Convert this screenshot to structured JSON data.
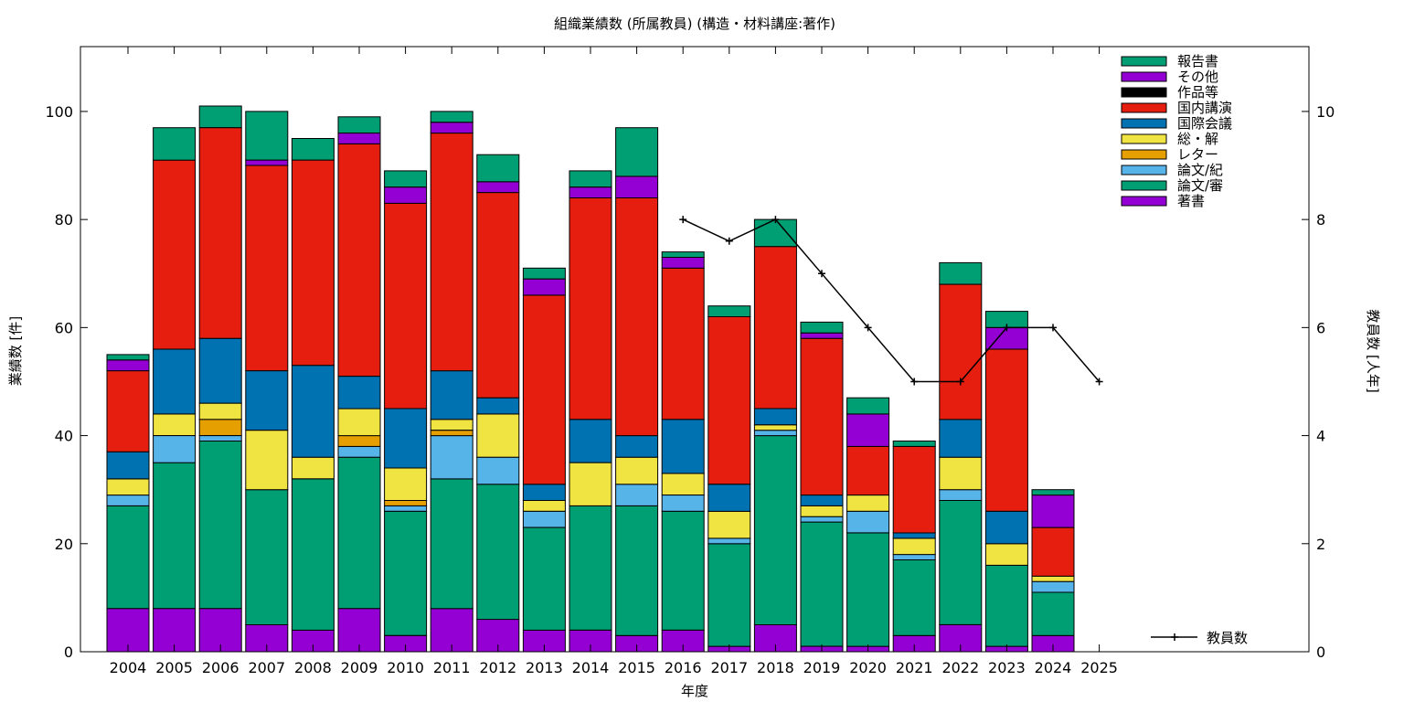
{
  "chart_data": {
    "type": "bar",
    "stacked": true,
    "title": "組織業績数 (所属教員) (構造・材料講座:著作)",
    "xlabel": "年度",
    "ylabel": "業績数 [件]",
    "y2label": "教員数 [人年]",
    "ylim": [
      0,
      112
    ],
    "y2lim": [
      0,
      11.2
    ],
    "yticks": [
      0,
      20,
      40,
      60,
      80,
      100
    ],
    "y2ticks": [
      0,
      2,
      4,
      6,
      8,
      10
    ],
    "grid": false,
    "legend_position": "top-right",
    "categories": [
      "2004",
      "2005",
      "2006",
      "2007",
      "2008",
      "2009",
      "2010",
      "2011",
      "2012",
      "2013",
      "2014",
      "2015",
      "2016",
      "2017",
      "2018",
      "2019",
      "2020",
      "2021",
      "2022",
      "2023",
      "2024",
      "2025"
    ],
    "series": [
      {
        "name": "著書",
        "color": "#9400d3",
        "values": [
          8,
          8,
          8,
          5,
          4,
          8,
          3,
          8,
          6,
          4,
          4,
          3,
          4,
          1,
          5,
          1,
          1,
          3,
          5,
          1,
          3,
          0
        ]
      },
      {
        "name": "論文/審",
        "color": "#009e73",
        "values": [
          19,
          27,
          31,
          25,
          28,
          28,
          23,
          24,
          25,
          19,
          23,
          24,
          22,
          19,
          35,
          23,
          21,
          14,
          23,
          15,
          8,
          0
        ]
      },
      {
        "name": "論文/紀",
        "color": "#56b4e9",
        "values": [
          2,
          5,
          1,
          0,
          0,
          2,
          1,
          8,
          5,
          3,
          0,
          4,
          3,
          1,
          1,
          1,
          4,
          1,
          2,
          0,
          2,
          0
        ]
      },
      {
        "name": "レター",
        "color": "#e69f00",
        "values": [
          0,
          0,
          3,
          0,
          0,
          2,
          1,
          1,
          0,
          0,
          0,
          0,
          0,
          0,
          0,
          0,
          0,
          0,
          0,
          0,
          0,
          0
        ]
      },
      {
        "name": "総・解",
        "color": "#f0e442",
        "values": [
          3,
          4,
          3,
          11,
          4,
          5,
          6,
          2,
          8,
          2,
          8,
          5,
          4,
          5,
          1,
          2,
          3,
          3,
          6,
          4,
          1,
          0
        ]
      },
      {
        "name": "国際会議",
        "color": "#0072b2",
        "values": [
          5,
          12,
          12,
          11,
          17,
          6,
          11,
          9,
          3,
          3,
          8,
          4,
          10,
          5,
          3,
          2,
          0,
          1,
          7,
          6,
          0,
          0
        ]
      },
      {
        "name": "国内講演",
        "color": "#e51e10",
        "values": [
          15,
          35,
          39,
          38,
          38,
          43,
          38,
          44,
          38,
          35,
          41,
          44,
          28,
          31,
          30,
          29,
          9,
          16,
          25,
          30,
          9,
          0
        ]
      },
      {
        "name": "作品等",
        "color": "#000000",
        "values": [
          0,
          0,
          0,
          0,
          0,
          0,
          0,
          0,
          0,
          0,
          0,
          0,
          0,
          0,
          0,
          0,
          0,
          0,
          0,
          0,
          0,
          0
        ]
      },
      {
        "name": "その他",
        "color": "#9400d3",
        "values": [
          2,
          0,
          0,
          1,
          0,
          2,
          3,
          2,
          2,
          3,
          2,
          4,
          2,
          0,
          0,
          1,
          6,
          0,
          0,
          4,
          6,
          0
        ]
      },
      {
        "name": "報告書",
        "color": "#009e73",
        "values": [
          1,
          6,
          4,
          9,
          4,
          3,
          3,
          2,
          5,
          2,
          3,
          9,
          1,
          2,
          5,
          2,
          3,
          1,
          4,
          3,
          1,
          0
        ]
      }
    ],
    "line_series": {
      "name": "教員数",
      "axis": "y2",
      "x": [
        "2016",
        "2017",
        "2018",
        "2019",
        "2020",
        "2021",
        "2022",
        "2023",
        "2024",
        "2025"
      ],
      "values": [
        8,
        7.6,
        8,
        7,
        6,
        5,
        5,
        6,
        6,
        5
      ]
    },
    "legend_order": [
      "報告書",
      "その他",
      "作品等",
      "国内講演",
      "国際会議",
      "総・解",
      "レター",
      "論文/紀",
      "論文/審",
      "著書"
    ]
  }
}
